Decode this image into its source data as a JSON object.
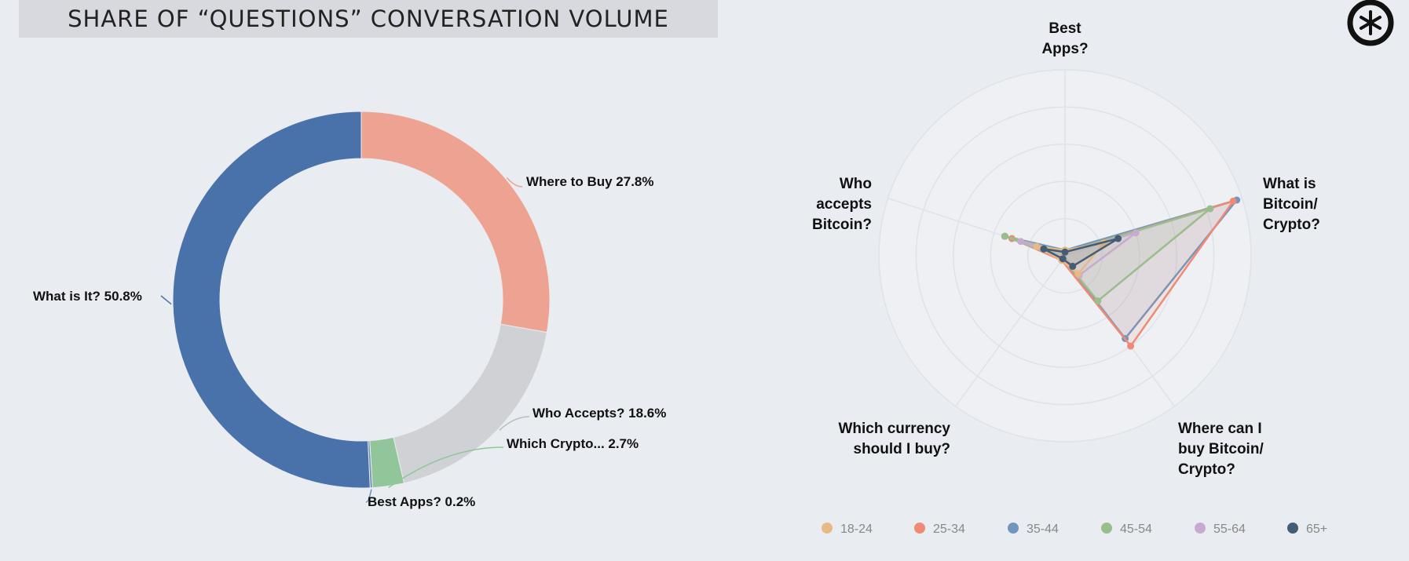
{
  "title": "SHARE OF “QUESTIONS” CONVERSATION VOLUME",
  "logo_icon": "asterisk-circle-icon",
  "chart_data": [
    {
      "type": "pie",
      "style": "donut",
      "slices": [
        {
          "label": "What is It? 50.8%",
          "name": "What is It?",
          "value": 50.8,
          "color": "#4a72aa"
        },
        {
          "label": "Where to Buy 27.8%",
          "name": "Where to Buy",
          "value": 27.8,
          "color": "#eea392"
        },
        {
          "label": "Who Accepts? 18.6%",
          "name": "Who Accepts?",
          "value": 18.6,
          "color": "#cfd1d5"
        },
        {
          "label": "Which Crypto... 2.7%",
          "name": "Which Crypto...",
          "value": 2.7,
          "color": "#90c69a"
        },
        {
          "label": "Best Apps? 0.2%",
          "name": "Best Apps?",
          "value": 0.2,
          "color": "#6f8db8"
        }
      ]
    },
    {
      "type": "radar",
      "axes": [
        "Best Apps?",
        "What is Bitcoin/ Crypto?",
        "Where can I buy Bitcoin/ Crypto?",
        "Which currency should I buy?",
        "Who accepts Bitcoin?"
      ],
      "rmax": 100,
      "grid_rings": [
        20,
        40,
        60,
        80,
        100
      ],
      "series": [
        {
          "name": "18-24",
          "color": "#e7b985",
          "values": [
            3,
            22,
            12,
            3,
            16
          ]
        },
        {
          "name": "25-34",
          "color": "#ee8a75",
          "values": [
            2,
            95,
            60,
            3,
            30
          ]
        },
        {
          "name": "35-44",
          "color": "#6f96bd",
          "values": [
            3,
            97,
            55,
            2,
            34
          ]
        },
        {
          "name": "45-54",
          "color": "#99bd8b",
          "values": [
            2,
            82,
            30,
            2,
            34
          ]
        },
        {
          "name": "55-64",
          "color": "#c9aacf",
          "values": [
            2,
            40,
            13,
            2,
            25
          ]
        },
        {
          "name": "65+",
          "color": "#455d74",
          "values": [
            2,
            30,
            7,
            2,
            12
          ]
        }
      ]
    }
  ]
}
